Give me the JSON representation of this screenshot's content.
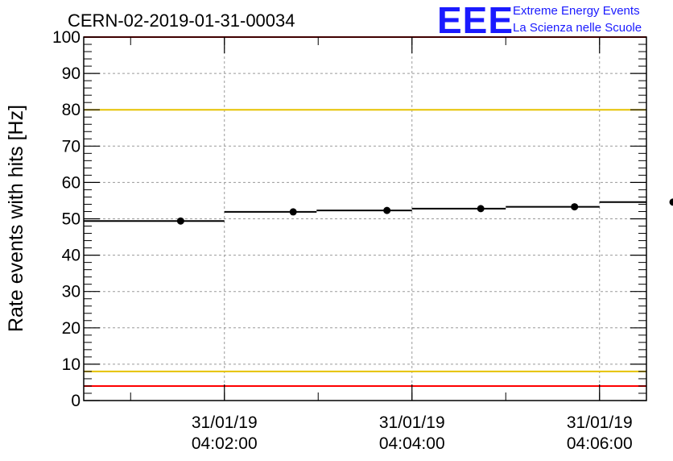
{
  "chart_data": {
    "type": "scatter",
    "title": "CERN-02-2019-01-31-00034",
    "ylabel": "Rate events with hits [Hz]",
    "xlabel": "",
    "ylim": [
      0,
      100
    ],
    "yticks": [
      0,
      10,
      20,
      30,
      40,
      50,
      60,
      70,
      80,
      90,
      100
    ],
    "xrange": [
      "31/01/19 04:00:30",
      "31/01/19 04:06:30"
    ],
    "xticks": [
      {
        "time": "31/01/19 04:02:00",
        "date": "31/01/19",
        "clock": "04:02:00"
      },
      {
        "time": "31/01/19 04:04:00",
        "date": "31/01/19",
        "clock": "04:04:00"
      },
      {
        "time": "31/01/19 04:06:00",
        "date": "31/01/19",
        "clock": "04:06:00"
      }
    ],
    "grid": true,
    "series": [
      {
        "points": [
          {
            "x": "31/01/19 04:01:32",
            "x_start": "31/01/19 04:00:30",
            "x_end": "31/01/19 04:02:00",
            "y": 49.4
          },
          {
            "x": "31/01/19 04:02:44",
            "x_start": "31/01/19 04:02:00",
            "x_end": "31/01/19 04:02:59",
            "y": 51.9
          },
          {
            "x": "31/01/19 04:03:44",
            "x_start": "31/01/19 04:02:59",
            "x_end": "31/01/19 04:04:00",
            "y": 52.3
          },
          {
            "x": "31/01/19 04:04:44",
            "x_start": "31/01/19 04:04:00",
            "x_end": "31/01/19 04:05:00",
            "y": 52.8
          },
          {
            "x": "31/01/19 04:05:44",
            "x_start": "31/01/19 04:05:00",
            "x_end": "31/01/19 04:06:00",
            "y": 53.3
          },
          {
            "x": "31/01/19 04:06:47",
            "x_start": "31/01/19 04:06:00",
            "x_end": "31/01/19 04:06:30",
            "y": 54.6
          }
        ]
      }
    ],
    "reference_lines": [
      {
        "y": 100,
        "color": "#ff0000"
      },
      {
        "y": 80,
        "color": "#e6c200"
      },
      {
        "y": 8,
        "color": "#e6c200"
      },
      {
        "y": 4,
        "color": "#ff0000"
      }
    ]
  },
  "logo": {
    "letters": "EEE",
    "line1": "Extreme Energy Events",
    "line2": "La Scienza nelle Scuole",
    "color": "#1a1aff"
  }
}
